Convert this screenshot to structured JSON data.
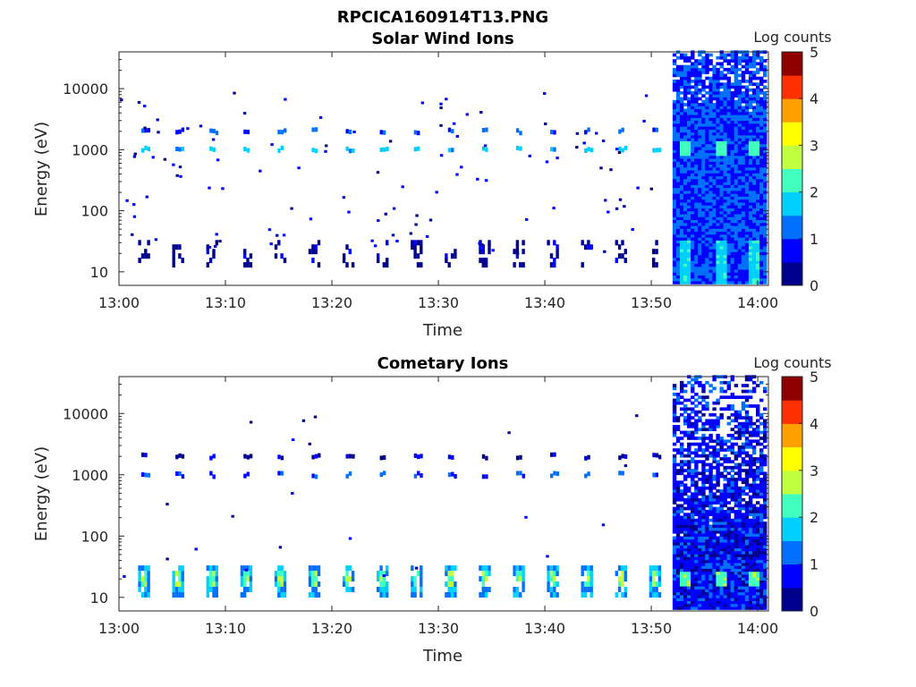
{
  "figure": {
    "title": "RPCICA160914T13.PNG"
  },
  "colorscale": {
    "colors": [
      "#00008f",
      "#0000ff",
      "#0070ff",
      "#00d0ff",
      "#40ffbf",
      "#c0ff40",
      "#ffff00",
      "#ffa000",
      "#ff3000",
      "#8f0000"
    ]
  },
  "chart_data": [
    {
      "type": "heatmap",
      "title": "Solar Wind Ions",
      "xlabel": "Time",
      "ylabel": "Energy (eV)",
      "yscale": "log",
      "xlim": [
        "13:00",
        "14:01"
      ],
      "ylim": [
        6,
        40000
      ],
      "x_ticks": [
        "13:00",
        "13:10",
        "13:20",
        "13:30",
        "13:40",
        "13:50",
        "14:00"
      ],
      "y_ticks": [
        "10",
        "100",
        "1000",
        "10000"
      ],
      "colorbar": {
        "label": "Log counts",
        "range": [
          0,
          5
        ],
        "ticks": [
          "0",
          "1",
          "2",
          "3",
          "4",
          "5"
        ]
      },
      "sweep_times_min": [
        2.1,
        5.3,
        8.5,
        11.7,
        14.9,
        18.1,
        21.3,
        24.5,
        27.7,
        30.9,
        34.1,
        37.3,
        40.5,
        43.7,
        46.9,
        50.1
      ],
      "line_bands": [
        {
          "energy_ev": 1000,
          "log_counts": 1.7
        },
        {
          "energy_ev": 2000,
          "log_counts": 1.0
        }
      ],
      "low_energy_band_ev": [
        13,
        30
      ],
      "low_energy_log_counts": 0.3,
      "dense_region": {
        "start": "13:52",
        "end": "14:01",
        "energy_range_ev": [
          6,
          40000
        ],
        "log_counts_range": [
          0.5,
          1.5
        ],
        "peak_energy_ev": 1000,
        "peak_log_counts": 2.0
      }
    },
    {
      "type": "heatmap",
      "title": "Cometary Ions",
      "xlabel": "Time",
      "ylabel": "Energy (eV)",
      "yscale": "log",
      "xlim": [
        "13:00",
        "14:01"
      ],
      "ylim": [
        6,
        40000
      ],
      "x_ticks": [
        "13:00",
        "13:10",
        "13:20",
        "13:30",
        "13:40",
        "13:50",
        "14:00"
      ],
      "y_ticks": [
        "10",
        "100",
        "1000",
        "10000"
      ],
      "colorbar": {
        "label": "Log counts",
        "range": [
          0,
          5
        ],
        "ticks": [
          "0",
          "1",
          "2",
          "3",
          "4",
          "5"
        ]
      },
      "sweep_times_min": [
        2.1,
        5.3,
        8.5,
        11.7,
        14.9,
        18.1,
        21.3,
        24.5,
        27.7,
        30.9,
        34.1,
        37.3,
        40.5,
        43.7,
        46.9,
        50.1
      ],
      "line_bands": [
        {
          "energy_ev": 1000,
          "log_counts": 1.0
        },
        {
          "energy_ev": 2000,
          "log_counts": 0.5
        }
      ],
      "low_energy_band_ev": [
        11,
        30
      ],
      "low_energy_log_counts": 1.5,
      "dense_region": {
        "start": "13:52",
        "end": "14:01",
        "energy_range_ev": [
          6,
          40000
        ],
        "log_counts_range": [
          0.3,
          1.2
        ],
        "peak_energy_ev": 20,
        "peak_log_counts": 2.2
      }
    }
  ]
}
